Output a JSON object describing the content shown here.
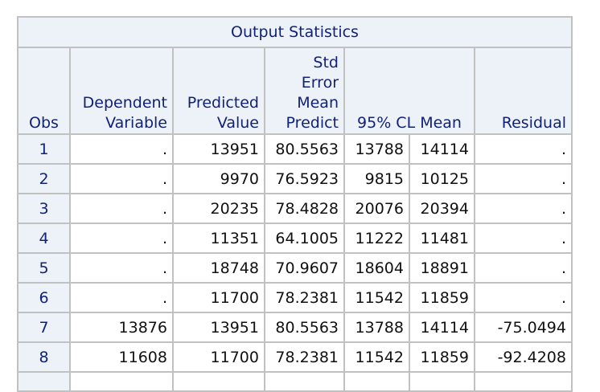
{
  "table": {
    "title": "Output Statistics",
    "headers": {
      "obs": "Obs",
      "dependent": [
        "Dependent",
        "Variable"
      ],
      "predicted": [
        "Predicted",
        "Value"
      ],
      "stderr": [
        "Std",
        "Error",
        "Mean",
        "Predict"
      ],
      "cl": "95% CL Mean",
      "residual": "Residual"
    },
    "rows": [
      {
        "obs": "1",
        "dep": ".",
        "pred": "13951",
        "se": "80.5563",
        "lcl": "13788",
        "ucl": "14114",
        "res": "."
      },
      {
        "obs": "2",
        "dep": ".",
        "pred": "9970",
        "se": "76.5923",
        "lcl": "9815",
        "ucl": "10125",
        "res": "."
      },
      {
        "obs": "3",
        "dep": ".",
        "pred": "20235",
        "se": "78.4828",
        "lcl": "20076",
        "ucl": "20394",
        "res": "."
      },
      {
        "obs": "4",
        "dep": ".",
        "pred": "11351",
        "se": "64.1005",
        "lcl": "11222",
        "ucl": "11481",
        "res": "."
      },
      {
        "obs": "5",
        "dep": ".",
        "pred": "18748",
        "se": "70.9607",
        "lcl": "18604",
        "ucl": "18891",
        "res": "."
      },
      {
        "obs": "6",
        "dep": ".",
        "pred": "11700",
        "se": "78.2381",
        "lcl": "11542",
        "ucl": "11859",
        "res": "."
      },
      {
        "obs": "7",
        "dep": "13876",
        "pred": "13951",
        "se": "80.5563",
        "lcl": "13788",
        "ucl": "14114",
        "res": "-75.0494"
      },
      {
        "obs": "8",
        "dep": "11608",
        "pred": "11700",
        "se": "78.2381",
        "lcl": "11542",
        "ucl": "11859",
        "res": "-92.4208"
      }
    ]
  }
}
